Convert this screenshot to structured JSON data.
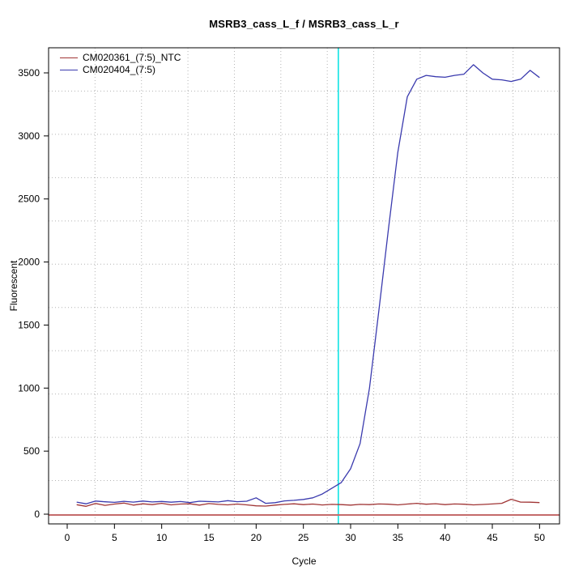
{
  "title": "MSRB3_cass_L_f / MSRB3_cass_L_r",
  "legend": {
    "items": [
      {
        "label": "CM020361_(7:5)_NTC",
        "color": "#a03535"
      },
      {
        "label": "CM020404_(7:5)",
        "color": "#3a3aae"
      }
    ]
  },
  "chart_data": {
    "type": "line",
    "title": "MSRB3_cass_L_f / MSRB3_cass_L_r",
    "xlabel": "Cycle",
    "ylabel": "Fluorescent",
    "x_ticks": [
      0,
      5,
      10,
      15,
      20,
      25,
      30,
      35,
      40,
      45,
      50
    ],
    "y_ticks": [
      0,
      500,
      1000,
      1500,
      2000,
      2500,
      3000,
      3500
    ],
    "xlim": [
      -2,
      52.1
    ],
    "ylim": [
      -80,
      3700
    ],
    "grid": {
      "style": "dotted",
      "color": "#b4b4b4",
      "nx": 11,
      "ny": 11
    },
    "legend_position": "top-left",
    "x": [
      1,
      2,
      3,
      4,
      5,
      6,
      7,
      8,
      9,
      10,
      11,
      12,
      13,
      14,
      15,
      16,
      17,
      18,
      19,
      20,
      21,
      22,
      23,
      24,
      25,
      26,
      27,
      28,
      29,
      30,
      31,
      32,
      33,
      34,
      35,
      36,
      37,
      38,
      39,
      40,
      41,
      42,
      43,
      44,
      45,
      46,
      47,
      48,
      49,
      50
    ],
    "series": [
      {
        "name": "CM020361_(7:5)_NTC",
        "color": "#a03535",
        "values": [
          75,
          62,
          85,
          70,
          80,
          88,
          72,
          82,
          76,
          86,
          74,
          80,
          82,
          72,
          84,
          78,
          74,
          80,
          74,
          66,
          64,
          72,
          78,
          82,
          76,
          80,
          73,
          78,
          76,
          72,
          78,
          76,
          81,
          79,
          74,
          80,
          86,
          79,
          83,
          76,
          81,
          79,
          74,
          77,
          81,
          86,
          118,
          96,
          95,
          92
        ]
      },
      {
        "name": "CM020404_(7:5)",
        "color": "#3a3aae",
        "values": [
          96,
          82,
          104,
          98,
          94,
          102,
          96,
          104,
          97,
          101,
          95,
          100,
          92,
          103,
          100,
          97,
          107,
          99,
          103,
          130,
          86,
          91,
          105,
          110,
          117,
          130,
          160,
          205,
          250,
          360,
          560,
          1000,
          1620,
          2260,
          2870,
          3310,
          3450,
          3480,
          3470,
          3465,
          3480,
          3490,
          3565,
          3500,
          3450,
          3445,
          3432,
          3450,
          3520,
          3463
        ]
      }
    ],
    "threshold_line": {
      "value": 0,
      "color": "#c46b6b"
    },
    "ct_line": {
      "cycle": 28.7,
      "color": "#00e2e2"
    }
  }
}
